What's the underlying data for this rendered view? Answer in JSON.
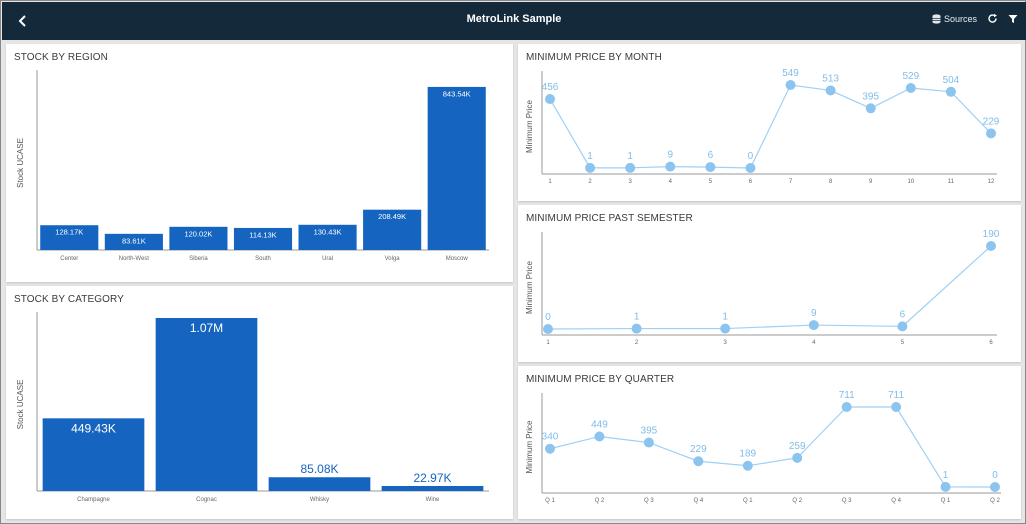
{
  "app": {
    "title": "MetroLink Sample",
    "sources_label": "Sources",
    "icons": {
      "back": "chevron-left-icon",
      "sources": "database-icon",
      "refresh": "refresh-icon",
      "filter": "filter-icon"
    }
  },
  "colors": {
    "topbar": "#14293a",
    "bar": "#1565c0",
    "line": "#9fd0f5",
    "point": "#8cc4f0",
    "point_label": "#7fbdea"
  },
  "tiles": {
    "stock_by_region": {
      "title": "STOCK BY REGION"
    },
    "stock_by_category": {
      "title": "STOCK BY CATEGORY"
    },
    "min_price_month": {
      "title": "MINIMUM PRICE BY MONTH"
    },
    "min_price_semester": {
      "title": "MINIMUM PRICE PAST SEMESTER"
    },
    "min_price_quarter": {
      "title": "MINIMUM PRICE BY QUARTER"
    }
  },
  "chart_data": [
    {
      "id": "stock_by_region",
      "type": "bar",
      "title": "STOCK BY REGION",
      "ylabel": "Stock UCASE",
      "categories": [
        "Center",
        "North-West",
        "Siberia",
        "South",
        "Ural",
        "Volga",
        "Moscow"
      ],
      "values": [
        128170,
        83610,
        120020,
        114130,
        130430,
        208490,
        843540
      ],
      "value_labels": [
        "128.17K",
        "83.61K",
        "120.02K",
        "114.13K",
        "130.43K",
        "208.49K",
        "843.54K"
      ],
      "ylim": [
        0,
        900000
      ]
    },
    {
      "id": "stock_by_category",
      "type": "bar",
      "title": "STOCK BY CATEGORY",
      "ylabel": "Stock UCASE",
      "categories": [
        "Champagne",
        "Cognac",
        "Whisky",
        "Wine"
      ],
      "values": [
        449430,
        1070000,
        85080,
        22970
      ],
      "value_labels": [
        "449.43K",
        "1.07M",
        "85.08K",
        "22.97K"
      ],
      "ylim": [
        0,
        1070000
      ]
    },
    {
      "id": "min_price_month",
      "type": "line",
      "title": "MINIMUM PRICE BY MONTH",
      "ylabel": "Minimum Price",
      "categories": [
        "1",
        "2",
        "3",
        "4",
        "5",
        "6",
        "7",
        "8",
        "9",
        "10",
        "11",
        "12"
      ],
      "values": [
        456,
        1,
        1,
        9,
        6,
        0,
        549,
        513,
        395,
        529,
        504,
        229
      ],
      "ylim": [
        0,
        549
      ]
    },
    {
      "id": "min_price_semester",
      "type": "line",
      "title": "MINIMUM PRICE PAST SEMESTER",
      "ylabel": "Minimum Price",
      "categories": [
        "1",
        "2",
        "3",
        "4",
        "5",
        "6"
      ],
      "values": [
        0,
        1,
        1,
        9,
        6,
        190
      ],
      "ylim": [
        0,
        190
      ]
    },
    {
      "id": "min_price_quarter",
      "type": "line",
      "title": "MINIMUM PRICE BY QUARTER",
      "ylabel": "Minimum Price",
      "categories": [
        "Q 1",
        "Q 2",
        "Q 3",
        "Q 4",
        "Q 1",
        "Q 2",
        "Q 3",
        "Q 4",
        "Q 1",
        "Q 2"
      ],
      "values": [
        340,
        449,
        395,
        229,
        189,
        259,
        711,
        711,
        1,
        0
      ],
      "ylim": [
        0,
        711
      ]
    }
  ]
}
